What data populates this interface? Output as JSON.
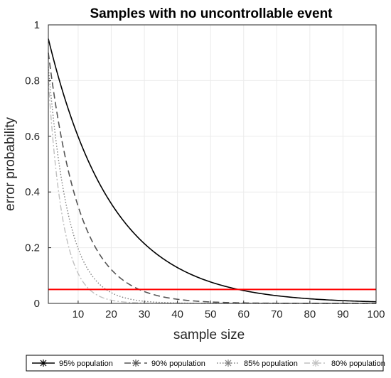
{
  "chart_data": {
    "type": "line",
    "title": "Samples with no uncontrollable event",
    "xlabel": "sample size",
    "ylabel": "error probability",
    "xlim": [
      1,
      100
    ],
    "ylim": [
      0,
      1
    ],
    "xticks": [
      10,
      20,
      30,
      40,
      50,
      60,
      70,
      80,
      90,
      100
    ],
    "yticks": [
      0,
      0.2,
      0.4,
      0.6,
      0.8,
      1
    ],
    "ytick_labels": [
      "0",
      "0.2",
      "0.4",
      "0.6",
      "0.8",
      "1"
    ],
    "grid": true,
    "legend_position": "bottom",
    "formula": "y = p^x",
    "series": [
      {
        "name": "95% population",
        "base": 0.95,
        "color": "#000000",
        "dash": "",
        "width": 1.6,
        "marker": "*"
      },
      {
        "name": "90% population",
        "base": 0.9,
        "color": "#555555",
        "dash": "9,5",
        "width": 1.6,
        "marker": "*"
      },
      {
        "name": "85% population",
        "base": 0.85,
        "color": "#7f7f7f",
        "dash": "1.5,2.5",
        "width": 1.4,
        "marker": "*"
      },
      {
        "name": "80% population",
        "base": 0.8,
        "color": "#c0c0c0",
        "dash": "8,3,2,3",
        "width": 1.4,
        "marker": "*"
      }
    ],
    "threshold": {
      "value": 0.05,
      "color": "#ff0000"
    }
  }
}
